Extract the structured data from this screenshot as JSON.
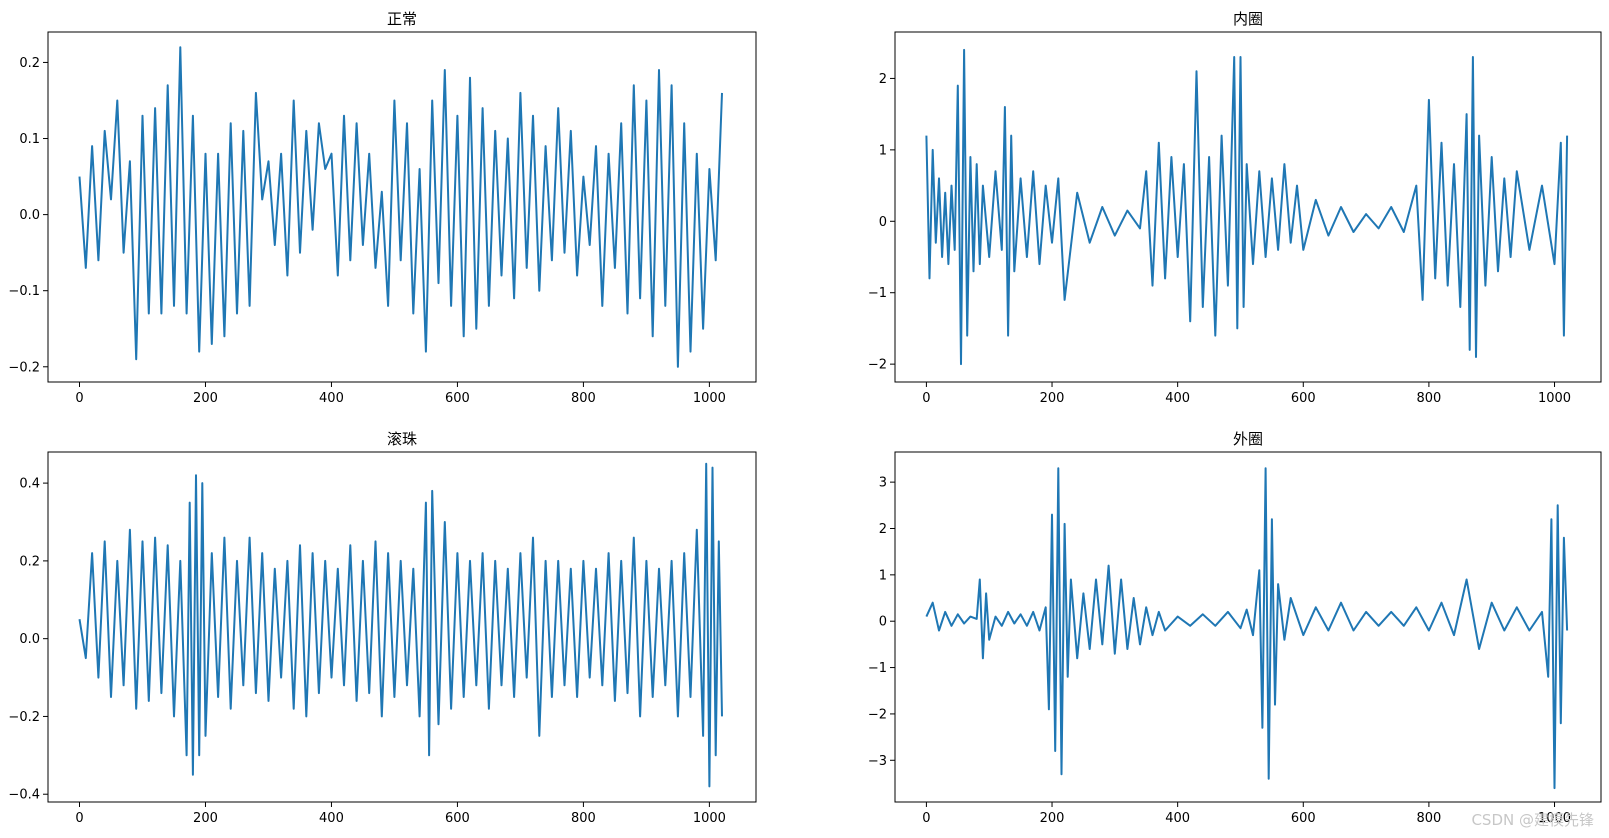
{
  "watermark": "CSDN @建模先锋",
  "chart_data": [
    {
      "type": "line",
      "title": "正常",
      "xlim": [
        -50,
        1074
      ],
      "ylim": [
        -0.22,
        0.24
      ],
      "xticks": [
        0,
        200,
        400,
        600,
        800,
        1000
      ],
      "xtick_labels": [
        "0",
        "200",
        "400",
        "600",
        "800",
        "1000"
      ],
      "yticks": [
        -0.2,
        -0.1,
        0.0,
        0.1,
        0.2
      ],
      "ytick_labels": [
        "−0.2",
        "−0.1",
        "0.0",
        "0.1",
        "0.2"
      ],
      "series": [
        {
          "color": "#1f77b4",
          "x": [
            0,
            10,
            20,
            30,
            40,
            50,
            60,
            70,
            80,
            90,
            100,
            110,
            120,
            130,
            140,
            150,
            160,
            170,
            180,
            190,
            200,
            210,
            220,
            230,
            240,
            250,
            260,
            270,
            280,
            290,
            300,
            310,
            320,
            330,
            340,
            350,
            360,
            370,
            380,
            390,
            400,
            410,
            420,
            430,
            440,
            450,
            460,
            470,
            480,
            490,
            500,
            510,
            520,
            530,
            540,
            550,
            560,
            570,
            580,
            590,
            600,
            610,
            620,
            630,
            640,
            650,
            660,
            670,
            680,
            690,
            700,
            710,
            720,
            730,
            740,
            750,
            760,
            770,
            780,
            790,
            800,
            810,
            820,
            830,
            840,
            850,
            860,
            870,
            880,
            890,
            900,
            910,
            920,
            930,
            940,
            950,
            960,
            970,
            980,
            990,
            1000,
            1010,
            1020
          ],
          "y": [
            0.05,
            -0.07,
            0.09,
            -0.06,
            0.11,
            0.02,
            0.15,
            -0.05,
            0.07,
            -0.19,
            0.13,
            -0.13,
            0.14,
            -0.13,
            0.17,
            -0.12,
            0.22,
            -0.13,
            0.13,
            -0.18,
            0.08,
            -0.17,
            0.08,
            -0.16,
            0.12,
            -0.13,
            0.11,
            -0.12,
            0.16,
            0.02,
            0.07,
            -0.04,
            0.08,
            -0.08,
            0.15,
            -0.05,
            0.11,
            -0.02,
            0.12,
            0.06,
            0.08,
            -0.08,
            0.13,
            -0.06,
            0.12,
            -0.04,
            0.08,
            -0.07,
            0.03,
            -0.12,
            0.15,
            -0.06,
            0.12,
            -0.13,
            0.06,
            -0.18,
            0.15,
            -0.09,
            0.19,
            -0.12,
            0.13,
            -0.16,
            0.18,
            -0.15,
            0.14,
            -0.12,
            0.11,
            -0.08,
            0.1,
            -0.11,
            0.16,
            -0.07,
            0.13,
            -0.1,
            0.09,
            -0.06,
            0.14,
            -0.05,
            0.11,
            -0.08,
            0.05,
            -0.04,
            0.09,
            -0.12,
            0.08,
            -0.07,
            0.12,
            -0.13,
            0.17,
            -0.11,
            0.15,
            -0.16,
            0.19,
            -0.12,
            0.17,
            -0.2,
            0.12,
            -0.18,
            0.08,
            -0.15,
            0.06,
            -0.06,
            0.16
          ]
        }
      ]
    },
    {
      "type": "line",
      "title": "内圈",
      "xlim": [
        -50,
        1074
      ],
      "ylim": [
        -2.25,
        2.65
      ],
      "xticks": [
        0,
        200,
        400,
        600,
        800,
        1000
      ],
      "xtick_labels": [
        "0",
        "200",
        "400",
        "600",
        "800",
        "1000"
      ],
      "yticks": [
        -2,
        -1,
        0,
        1,
        2
      ],
      "ytick_labels": [
        "−2",
        "−1",
        "0",
        "1",
        "2"
      ],
      "series": [
        {
          "color": "#1f77b4",
          "x": [
            0,
            5,
            10,
            15,
            20,
            25,
            30,
            35,
            40,
            45,
            50,
            55,
            60,
            65,
            70,
            75,
            80,
            85,
            90,
            100,
            110,
            120,
            125,
            130,
            135,
            140,
            150,
            160,
            170,
            180,
            190,
            200,
            210,
            220,
            240,
            260,
            280,
            300,
            320,
            340,
            350,
            360,
            370,
            380,
            390,
            400,
            410,
            420,
            430,
            440,
            450,
            460,
            470,
            480,
            490,
            495,
            500,
            505,
            510,
            520,
            530,
            540,
            550,
            560,
            570,
            580,
            590,
            600,
            620,
            640,
            660,
            680,
            700,
            720,
            740,
            760,
            780,
            790,
            800,
            810,
            820,
            830,
            840,
            850,
            860,
            865,
            870,
            875,
            880,
            890,
            900,
            910,
            920,
            930,
            940,
            960,
            980,
            1000,
            1010,
            1015,
            1020
          ],
          "y": [
            1.2,
            -0.8,
            1.0,
            -0.3,
            0.6,
            -0.5,
            0.4,
            -0.6,
            0.5,
            -0.4,
            1.9,
            -2.0,
            2.4,
            -1.6,
            0.9,
            -0.7,
            0.8,
            -0.6,
            0.5,
            -0.5,
            0.7,
            -0.4,
            1.6,
            -1.6,
            1.2,
            -0.7,
            0.6,
            -0.5,
            0.7,
            -0.6,
            0.5,
            -0.3,
            0.6,
            -1.1,
            0.4,
            -0.3,
            0.2,
            -0.2,
            0.15,
            -0.1,
            0.7,
            -0.9,
            1.1,
            -0.8,
            0.9,
            -0.5,
            0.8,
            -1.4,
            2.1,
            -1.2,
            0.9,
            -1.6,
            1.2,
            -0.9,
            2.3,
            -1.5,
            2.3,
            -1.2,
            0.8,
            -0.6,
            0.7,
            -0.5,
            0.6,
            -0.4,
            0.8,
            -0.3,
            0.5,
            -0.4,
            0.3,
            -0.2,
            0.2,
            -0.15,
            0.1,
            -0.1,
            0.2,
            -0.15,
            0.5,
            -1.1,
            1.7,
            -0.8,
            1.1,
            -0.9,
            0.8,
            -1.2,
            1.5,
            -1.8,
            2.3,
            -1.9,
            1.2,
            -0.9,
            0.9,
            -0.7,
            0.6,
            -0.5,
            0.7,
            -0.4,
            0.5,
            -0.6,
            1.1,
            -1.6,
            1.2
          ]
        }
      ]
    },
    {
      "type": "line",
      "title": "滚珠",
      "xlim": [
        -50,
        1074
      ],
      "ylim": [
        -0.42,
        0.48
      ],
      "xticks": [
        0,
        200,
        400,
        600,
        800,
        1000
      ],
      "xtick_labels": [
        "0",
        "200",
        "400",
        "600",
        "800",
        "1000"
      ],
      "yticks": [
        -0.4,
        -0.2,
        0.0,
        0.2,
        0.4
      ],
      "ytick_labels": [
        "−0.4",
        "−0.2",
        "0.0",
        "0.2",
        "0.4"
      ],
      "series": [
        {
          "color": "#1f77b4",
          "x": [
            0,
            10,
            20,
            30,
            40,
            50,
            60,
            70,
            80,
            90,
            100,
            110,
            120,
            130,
            140,
            150,
            160,
            170,
            175,
            180,
            185,
            190,
            195,
            200,
            210,
            220,
            230,
            240,
            250,
            260,
            270,
            280,
            290,
            300,
            310,
            320,
            330,
            340,
            350,
            360,
            370,
            380,
            390,
            400,
            410,
            420,
            430,
            440,
            450,
            460,
            470,
            480,
            490,
            500,
            510,
            520,
            530,
            540,
            550,
            555,
            560,
            570,
            580,
            590,
            600,
            610,
            620,
            630,
            640,
            650,
            660,
            670,
            680,
            690,
            700,
            710,
            720,
            730,
            740,
            750,
            760,
            770,
            780,
            790,
            800,
            810,
            820,
            830,
            840,
            850,
            860,
            870,
            880,
            890,
            900,
            910,
            920,
            930,
            940,
            950,
            960,
            970,
            980,
            990,
            995,
            1000,
            1005,
            1010,
            1015,
            1020
          ],
          "y": [
            0.05,
            -0.05,
            0.22,
            -0.1,
            0.25,
            -0.15,
            0.2,
            -0.12,
            0.28,
            -0.18,
            0.25,
            -0.16,
            0.26,
            -0.14,
            0.24,
            -0.2,
            0.2,
            -0.3,
            0.35,
            -0.35,
            0.42,
            -0.3,
            0.4,
            -0.25,
            0.22,
            -0.15,
            0.26,
            -0.18,
            0.2,
            -0.12,
            0.26,
            -0.14,
            0.22,
            -0.16,
            0.18,
            -0.1,
            0.2,
            -0.18,
            0.24,
            -0.2,
            0.22,
            -0.14,
            0.2,
            -0.1,
            0.18,
            -0.12,
            0.24,
            -0.16,
            0.2,
            -0.14,
            0.25,
            -0.2,
            0.22,
            -0.15,
            0.2,
            -0.12,
            0.18,
            -0.2,
            0.35,
            -0.3,
            0.38,
            -0.22,
            0.3,
            -0.18,
            0.22,
            -0.15,
            0.2,
            -0.12,
            0.22,
            -0.18,
            0.2,
            -0.12,
            0.18,
            -0.15,
            0.22,
            -0.1,
            0.26,
            -0.25,
            0.2,
            -0.15,
            0.2,
            -0.12,
            0.18,
            -0.15,
            0.2,
            -0.1,
            0.18,
            -0.12,
            0.22,
            -0.16,
            0.2,
            -0.14,
            0.26,
            -0.2,
            0.2,
            -0.15,
            0.18,
            -0.12,
            0.2,
            -0.2,
            0.22,
            -0.15,
            0.28,
            -0.25,
            0.45,
            -0.38,
            0.44,
            -0.3,
            0.25,
            -0.2
          ]
        }
      ]
    },
    {
      "type": "line",
      "title": "外圈",
      "xlim": [
        -50,
        1074
      ],
      "ylim": [
        -3.9,
        3.65
      ],
      "xticks": [
        0,
        200,
        400,
        600,
        800,
        1000
      ],
      "xtick_labels": [
        "0",
        "200",
        "400",
        "600",
        "800",
        "1000"
      ],
      "yticks": [
        -3,
        -2,
        -1,
        0,
        1,
        2,
        3
      ],
      "ytick_labels": [
        "−3",
        "−2",
        "−1",
        "0",
        "1",
        "2",
        "3"
      ],
      "series": [
        {
          "color": "#1f77b4",
          "x": [
            0,
            10,
            20,
            30,
            40,
            50,
            60,
            70,
            80,
            85,
            90,
            95,
            100,
            110,
            120,
            130,
            140,
            150,
            160,
            170,
            180,
            190,
            195,
            200,
            205,
            210,
            215,
            220,
            225,
            230,
            240,
            250,
            260,
            270,
            280,
            290,
            300,
            310,
            320,
            330,
            340,
            350,
            360,
            370,
            380,
            400,
            420,
            440,
            460,
            480,
            500,
            510,
            520,
            530,
            535,
            540,
            545,
            550,
            555,
            560,
            570,
            580,
            600,
            620,
            640,
            660,
            680,
            700,
            720,
            740,
            760,
            780,
            800,
            820,
            840,
            860,
            880,
            900,
            920,
            940,
            960,
            980,
            990,
            995,
            1000,
            1005,
            1010,
            1015,
            1020
          ],
          "y": [
            0.1,
            0.4,
            -0.2,
            0.2,
            -0.1,
            0.15,
            -0.05,
            0.1,
            0.05,
            0.9,
            -0.8,
            0.6,
            -0.4,
            0.1,
            -0.1,
            0.2,
            -0.05,
            0.15,
            -0.1,
            0.2,
            -0.2,
            0.3,
            -1.9,
            2.3,
            -2.8,
            3.3,
            -3.3,
            2.1,
            -1.2,
            0.9,
            -0.8,
            0.6,
            -0.6,
            0.9,
            -0.5,
            1.2,
            -0.7,
            0.9,
            -0.6,
            0.5,
            -0.5,
            0.3,
            -0.3,
            0.2,
            -0.2,
            0.1,
            -0.1,
            0.15,
            -0.1,
            0.2,
            -0.15,
            0.25,
            -0.3,
            1.1,
            -2.3,
            3.3,
            -3.4,
            2.2,
            -1.8,
            0.8,
            -0.4,
            0.5,
            -0.3,
            0.3,
            -0.2,
            0.4,
            -0.2,
            0.2,
            -0.1,
            0.2,
            -0.1,
            0.3,
            -0.2,
            0.4,
            -0.3,
            0.9,
            -0.6,
            0.4,
            -0.2,
            0.3,
            -0.2,
            0.2,
            -1.2,
            2.2,
            -3.6,
            2.5,
            -2.2,
            1.8,
            -0.2
          ]
        }
      ]
    }
  ]
}
